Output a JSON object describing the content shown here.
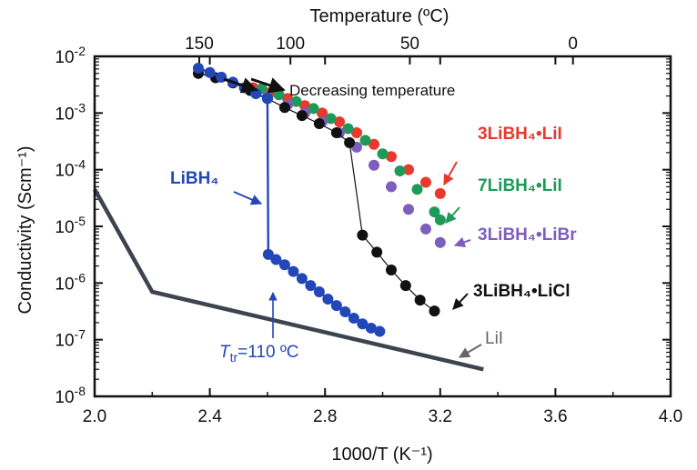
{
  "chart_data": {
    "type": "scatter",
    "xlabel": "1000/T (K⁻¹)",
    "ylabel": "Conductivity (Scm⁻¹)",
    "x2label": "Temperature (ºC)",
    "xlim": [
      2.0,
      4.0
    ],
    "ylim_log10": [
      -8,
      -2
    ],
    "y_scale": "log",
    "x_ticks": [
      "2.0",
      "2.4",
      "2.8",
      "3.2",
      "3.6",
      "4.0"
    ],
    "x_tick_values": [
      2.0,
      2.4,
      2.8,
      3.2,
      3.6,
      4.0
    ],
    "y_tick_exponents": [
      -8,
      -7,
      -6,
      -5,
      -4,
      -3,
      -2
    ],
    "y_tick_base": "10",
    "top_ticks": [
      {
        "label": "150",
        "celsius": 150
      },
      {
        "label": "100",
        "celsius": 100
      },
      {
        "label": "50",
        "celsius": 50
      },
      {
        "label": "0",
        "celsius": 0
      }
    ],
    "series": [
      {
        "name": "3LiBH₄•LiI",
        "color": "#e8392c",
        "style": "markers",
        "x": [
          2.55,
          2.61,
          2.67,
          2.73,
          2.79,
          2.85,
          2.91,
          2.97,
          3.03,
          3.09,
          3.15,
          3.2
        ],
        "y": [
          0.0028,
          0.0023,
          0.0018,
          0.00135,
          0.001,
          0.0007,
          0.00045,
          0.00028,
          0.00017,
          0.0001,
          6e-05,
          3.8e-05
        ]
      },
      {
        "name": "7LiBH₄•LiI",
        "color": "#1e9a58",
        "style": "markers",
        "x": [
          2.58,
          2.64,
          2.7,
          2.76,
          2.82,
          2.88,
          2.94,
          3.0,
          3.06,
          3.12,
          3.18,
          3.2
        ],
        "y": [
          0.0027,
          0.0021,
          0.0016,
          0.0012,
          0.0008,
          0.00053,
          0.00033,
          0.00019,
          9.5e-05,
          4.5e-05,
          1.8e-05,
          1.3e-05
        ]
      },
      {
        "name": "3LiBH₄•LiBr",
        "color": "#7d5ebd",
        "style": "markers",
        "x": [
          2.6,
          2.67,
          2.73,
          2.79,
          2.85,
          2.91,
          2.97,
          3.03,
          3.09,
          3.15,
          3.2
        ],
        "y": [
          0.0019,
          0.0014,
          0.001,
          0.0007,
          0.00045,
          0.00025,
          0.00012,
          5e-05,
          2e-05,
          9e-06,
          5.2e-06
        ]
      },
      {
        "name": "3LiBH₄•LiCl",
        "color": "#111111",
        "style": "markers-line",
        "x": [
          2.36,
          2.42,
          2.48,
          2.54,
          2.6,
          2.66,
          2.72,
          2.78,
          2.84,
          2.885,
          2.93,
          2.98,
          3.03,
          3.08,
          3.13,
          3.18
        ],
        "y": [
          0.005,
          0.0042,
          0.0034,
          0.0025,
          0.0018,
          0.00125,
          0.0009,
          0.00065,
          0.00045,
          0.0003,
          7e-06,
          3.5e-06,
          1.7e-06,
          9e-07,
          5e-07,
          3.2e-07
        ]
      },
      {
        "name": "LiBH₄",
        "color": "#2346b8",
        "style": "markers-line",
        "x": [
          2.36,
          2.4,
          2.44,
          2.48,
          2.52,
          2.56,
          2.6,
          2.603,
          2.63,
          2.66,
          2.69,
          2.72,
          2.75,
          2.78,
          2.81,
          2.84,
          2.87,
          2.9,
          2.93,
          2.96,
          2.99
        ],
        "y": [
          0.0062,
          0.0052,
          0.0043,
          0.0035,
          0.0028,
          0.0022,
          0.0018,
          3.2e-06,
          2.6e-06,
          2.1e-06,
          1.6e-06,
          1.2e-06,
          9e-07,
          7e-07,
          5.2e-07,
          4e-07,
          3.1e-07,
          2.4e-07,
          1.9e-07,
          1.6e-07,
          1.4e-07
        ]
      },
      {
        "name": "LiI",
        "color": "#3d4450",
        "style": "line",
        "x": [
          2.0,
          2.2,
          3.35
        ],
        "y": [
          4.5e-05,
          7e-07,
          3e-08
        ]
      }
    ],
    "annotations": {
      "decreasing": "Decreasing temperature",
      "transition_symbol": "T",
      "transition_subscript": "tr",
      "transition_value": "=110 ºC",
      "transition_x": 2.61
    }
  }
}
